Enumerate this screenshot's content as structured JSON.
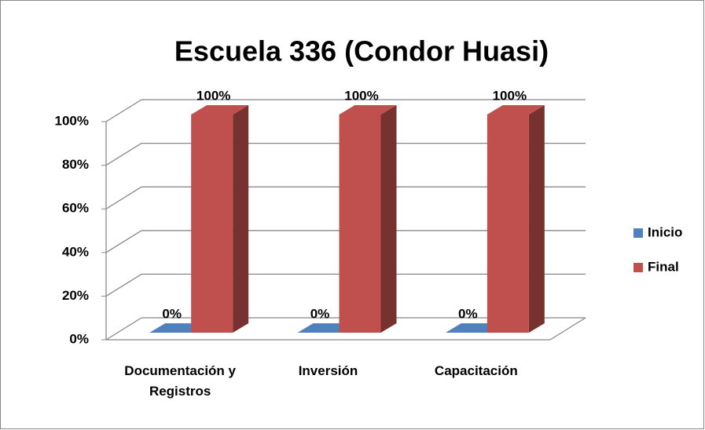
{
  "chart_data": {
    "type": "bar3d",
    "title": "Escuela 336 (Condor Huasi)",
    "categories": [
      "Documentación y Registros",
      "Inversión",
      "Capacitación"
    ],
    "series": [
      {
        "name": "Inicio",
        "color": "#4f81bd",
        "values": [
          0,
          0,
          0
        ],
        "value_labels": [
          "0%",
          "0%",
          "0%"
        ]
      },
      {
        "name": "Final",
        "color": "#c0504d",
        "values": [
          100,
          100,
          100
        ],
        "value_labels": [
          "100%",
          "100%",
          "100%"
        ]
      }
    ],
    "ylim": [
      0,
      100
    ],
    "yticks": [
      {
        "value": 0,
        "label": "0%"
      },
      {
        "value": 20,
        "label": "20%"
      },
      {
        "value": 40,
        "label": "40%"
      },
      {
        "value": 60,
        "label": "60%"
      },
      {
        "value": 80,
        "label": "80%"
      },
      {
        "value": 100,
        "label": "100%"
      }
    ],
    "grid": true,
    "legend": "right"
  }
}
